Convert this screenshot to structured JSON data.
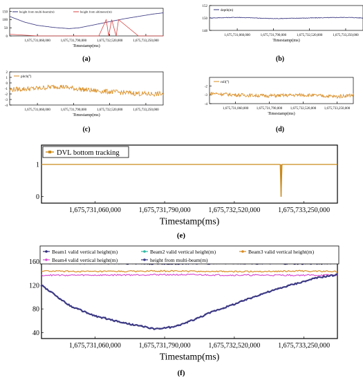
{
  "figure": {
    "panel_labels": [
      "(a)",
      "(b)",
      "(c)",
      "(d)",
      "(e)",
      "(f)"
    ],
    "x_ticks": [
      "1,675,731,060,000",
      "1,675,731,790,000",
      "1,675,732,520,000",
      "1,675,733,250,000"
    ],
    "colors": {
      "navy": "#2f2c7a",
      "orange": "#d98b1f",
      "red": "#d84040",
      "teal": "#2fb8a4",
      "magenta": "#d84fd0",
      "darkorange": "#c98a1a"
    }
  },
  "chart_data": [
    {
      "id": "a",
      "type": "line",
      "xlabel": "Timestamp(ms)",
      "ylabel": "",
      "x_range": [
        1675730500000,
        1675733600000
      ],
      "ylim": [
        0,
        170
      ],
      "yticks": [
        "150",
        "100",
        "50",
        "0"
      ],
      "series": [
        {
          "name": "height from multi-beam(m)",
          "color": "#2f2c7a",
          "x": [
            1675730500000,
            1675730800000,
            1675731060000,
            1675731400000,
            1675731700000,
            1675731900000,
            1675732200000,
            1675732520000,
            1675732800000,
            1675733100000,
            1675733400000,
            1675733600000
          ],
          "values": [
            120,
            85,
            65,
            52,
            45,
            50,
            68,
            88,
            105,
            120,
            135,
            142
          ]
        },
        {
          "name": "height from altimeter(m)",
          "color": "#d84040",
          "x": [
            1675730500000,
            1675731060000,
            1675731790000,
            1675732300000,
            1675732450000,
            1675732500000,
            1675732560000,
            1675732650000,
            1675732700000,
            1675733100000,
            1675733600000
          ],
          "values": [
            10,
            0,
            0,
            0,
            100,
            0,
            100,
            0,
            100,
            0,
            0
          ]
        }
      ]
    },
    {
      "id": "b",
      "type": "line",
      "xlabel": "Timestamp(ms)",
      "ylabel": "",
      "x_range": [
        1675730500000,
        1675733600000
      ],
      "ylim": [
        148,
        152
      ],
      "yticks": [
        "152",
        "150",
        "148"
      ],
      "series": [
        {
          "name": "depth(m)",
          "color": "#2f2c7a",
          "x": [
            1675730500000,
            1675731060000,
            1675731790000,
            1675732520000,
            1675733250000,
            1675733600000
          ],
          "values": [
            150.0,
            150.1,
            149.9,
            150.0,
            150.1,
            150.0
          ]
        }
      ]
    },
    {
      "id": "c",
      "type": "line",
      "xlabel": "Timestamp(ms)",
      "ylabel": "",
      "x_range": [
        1675730500000,
        1675733600000
      ],
      "ylim": [
        -4,
        2
      ],
      "yticks": [
        "2",
        "1",
        "0",
        "-1",
        "-2",
        "-3",
        "-4"
      ],
      "series": [
        {
          "name": "pitch(°)",
          "color": "#d98b1f",
          "x": [
            1675730500000,
            1675731060000,
            1675731500000,
            1675731790000,
            1675732200000,
            1675732520000,
            1675732900000,
            1675733250000,
            1675733600000
          ],
          "values": [
            -1.2,
            -1.0,
            -0.6,
            -1.0,
            -1.4,
            -1.6,
            -1.8,
            -2.0,
            -2.0
          ]
        }
      ]
    },
    {
      "id": "d",
      "type": "line",
      "xlabel": "Timestamp(ms)",
      "ylabel": "",
      "x_range": [
        1675730500000,
        1675733600000
      ],
      "ylim": [
        -4,
        -1
      ],
      "yticks": [
        "-2",
        "-3",
        "-4"
      ],
      "series": [
        {
          "name": "roll(°)",
          "color": "#d98b1f",
          "x": [
            1675730500000,
            1675731060000,
            1675731790000,
            1675732520000,
            1675733250000,
            1675733600000
          ],
          "values": [
            -2.8,
            -3.0,
            -3.1,
            -3.0,
            -3.2,
            -3.0
          ]
        }
      ]
    },
    {
      "id": "e",
      "type": "line",
      "xlabel": "Timestamp(ms)",
      "ylabel": "",
      "x_range": [
        1675730500000,
        1675733600000
      ],
      "ylim": [
        -0.2,
        1.6
      ],
      "yticks": [
        "1",
        "0"
      ],
      "series": [
        {
          "name": "DVL bottom tracking",
          "color": "#c98a1a",
          "x": [
            1675730500000,
            1675733000000,
            1675733010000,
            1675733020000,
            1675733600000
          ],
          "values": [
            1,
            1,
            0,
            1,
            1
          ]
        }
      ]
    },
    {
      "id": "f",
      "type": "line",
      "xlabel": "Timestamp(ms)",
      "ylabel": "",
      "x_range": [
        1675730500000,
        1675733600000
      ],
      "ylim": [
        30,
        170
      ],
      "yticks": [
        "160",
        "120",
        "80",
        "40"
      ],
      "series": [
        {
          "name": "Beam1 valid vertical height(m)",
          "color": "#2f2c7a",
          "x": [
            1675730500000,
            1675731060000,
            1675731790000,
            1675732520000,
            1675733250000,
            1675733600000
          ],
          "values": [
            157,
            157,
            156,
            157,
            156,
            157
          ]
        },
        {
          "name": "Beam2 valid vertical height(m)",
          "color": "#2fb8a4",
          "x": [
            1675730500000,
            1675731060000,
            1675731790000,
            1675732520000,
            1675733250000,
            1675733600000
          ],
          "values": [
            161,
            161,
            160,
            161,
            160,
            161
          ]
        },
        {
          "name": "Beam3 valid vertical height(m)",
          "color": "#d98b1f",
          "x": [
            1675730500000,
            1675731060000,
            1675731790000,
            1675732520000,
            1675733250000,
            1675733600000
          ],
          "values": [
            144,
            143,
            144,
            143,
            144,
            143
          ]
        },
        {
          "name": "Beam4 valid vertical height(m)",
          "color": "#d84fd0",
          "x": [
            1675730500000,
            1675731060000,
            1675731790000,
            1675732520000,
            1675733250000,
            1675733600000
          ],
          "values": [
            137,
            137,
            138,
            137,
            137,
            137
          ]
        },
        {
          "name": "height from multi-beam(m)",
          "color": "#3d3a85",
          "x": [
            1675730500000,
            1675730800000,
            1675731060000,
            1675731400000,
            1675731700000,
            1675731900000,
            1675732100000,
            1675732300000,
            1675732520000,
            1675732800000,
            1675733100000,
            1675733400000,
            1675733600000
          ],
          "values": [
            120,
            85,
            68,
            55,
            46,
            50,
            62,
            76,
            88,
            105,
            120,
            133,
            138
          ]
        }
      ]
    }
  ]
}
